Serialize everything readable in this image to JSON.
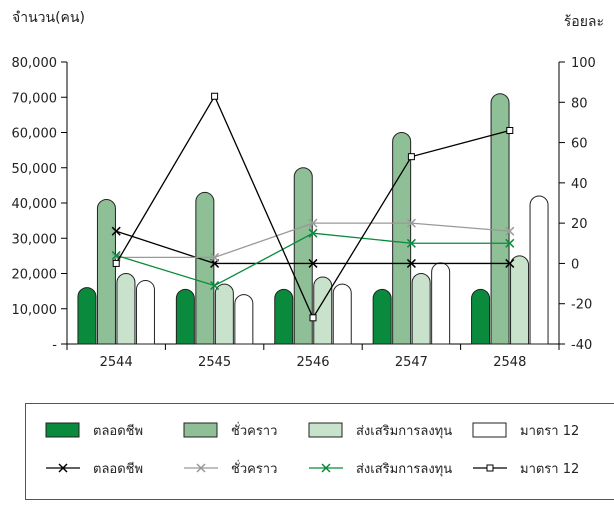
{
  "chart_data": {
    "type": "bar",
    "y_left_title": "จำนวน(คน)",
    "y_right_title": "ร้อยละ",
    "categories": [
      "2544",
      "2545",
      "2546",
      "2547",
      "2548"
    ],
    "y_left_ticks": [
      "80,000",
      "70,000",
      "60,000",
      "50,000",
      "40,000",
      "30,000",
      "20,000",
      "10,000",
      "-"
    ],
    "y_left_range": [
      0,
      80000
    ],
    "y_right_ticks": [
      "100",
      "80",
      "60",
      "40",
      "20",
      "0",
      "-20",
      "-40"
    ],
    "y_right_range": [
      -40,
      100
    ],
    "bar_series": [
      {
        "name": "ตลอดชีพ",
        "color": "#0a8a3c",
        "values": [
          16000,
          15500,
          15500,
          15500,
          15500
        ]
      },
      {
        "name": "ชั่วคราว",
        "color": "#8fbf96",
        "values": [
          41000,
          43000,
          50000,
          60000,
          71000
        ]
      },
      {
        "name": "ส่งเสริมการลงทุน",
        "color": "#c8e2cb",
        "values": [
          20000,
          17000,
          19000,
          20000,
          25000
        ]
      },
      {
        "name": "มาตรา 12",
        "color": "#ffffff",
        "values": [
          18000,
          14000,
          17000,
          23000,
          42000
        ]
      }
    ],
    "line_series": [
      {
        "name": "ตลอดชีพ",
        "color": "#000000",
        "marker": "x",
        "values": [
          16,
          0,
          0,
          0,
          0
        ]
      },
      {
        "name": "ชั่วคราว",
        "color": "#999999",
        "marker": "x",
        "values": [
          3,
          3,
          20,
          20,
          16
        ]
      },
      {
        "name": "ส่งเสริมการลงทุน",
        "color": "#0a8a3c",
        "marker": "x",
        "values": [
          4,
          -11,
          15,
          10,
          10
        ]
      },
      {
        "name": "มาตรา 12",
        "color": "#000000",
        "marker": "square",
        "values": [
          0,
          83,
          -27,
          53,
          66
        ]
      }
    ],
    "legend_position": "bottom"
  }
}
